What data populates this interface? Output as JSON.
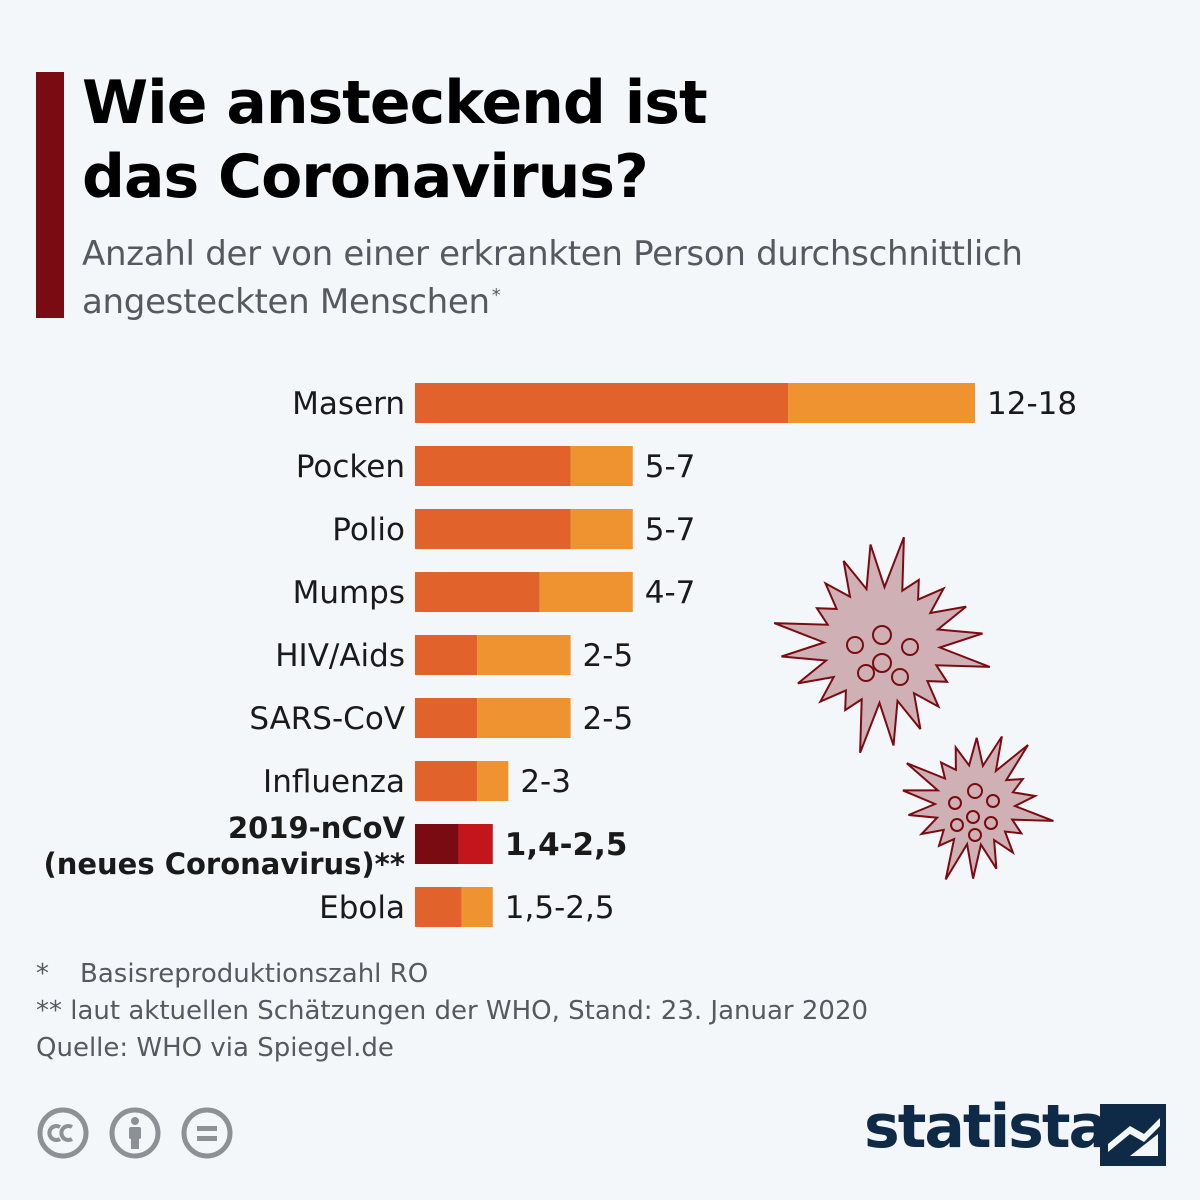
{
  "header": {
    "title_line1": "Wie ansteckend ist",
    "title_line2": "das Coronavirus?",
    "subtitle_line1": "Anzahl der von einer erkrankten Person durchschnittlich",
    "subtitle_line2": "angesteckten Menschen",
    "subtitle_mark": "*"
  },
  "colors": {
    "low": "#e2622c",
    "high": "#ef9330",
    "highlight_low": "#7b0b12",
    "highlight_high": "#c4151c",
    "accent": "#7b0b12",
    "brand": "#0e2a47"
  },
  "chart_data": {
    "type": "bar",
    "orientation": "horizontal",
    "stacked_range": true,
    "categories": [
      "Masern",
      "Pocken",
      "Polio",
      "Mumps",
      "HIV/Aids",
      "SARS-CoV",
      "Influenza",
      "2019-nCoV (neues Coronavirus)**",
      "Ebola"
    ],
    "category_lines": [
      [
        "Masern"
      ],
      [
        "Pocken"
      ],
      [
        "Polio"
      ],
      [
        "Mumps"
      ],
      [
        "HIV/Aids"
      ],
      [
        "SARS-CoV"
      ],
      [
        "Influenza"
      ],
      [
        "2019-nCoV",
        "(neues Coronavirus)**"
      ],
      [
        "Ebola"
      ]
    ],
    "min_values": [
      12,
      5,
      5,
      4,
      2,
      2,
      2,
      1.4,
      1.5
    ],
    "max_values": [
      18,
      7,
      7,
      7,
      5,
      5,
      3,
      2.5,
      2.5
    ],
    "value_labels": [
      "12-18",
      "5-7",
      "5-7",
      "4-7",
      "2-5",
      "2-5",
      "2-3",
      "1,4-2,5",
      "1,5-2,5"
    ],
    "highlight_index": 7,
    "xlim": [
      0,
      18
    ]
  },
  "footnotes": [
    {
      "mark": "*",
      "text": "Basisreproduktionszahl RO"
    },
    {
      "mark": "**",
      "text": "laut aktuellen Schätzungen der WHO, Stand: 23. Januar 2020"
    },
    {
      "mark": "",
      "text": "Quelle: WHO via Spiegel.de"
    }
  ],
  "icons": [
    "cc-icon",
    "attribution-icon",
    "no-derivatives-icon",
    "statista-logo-icon"
  ],
  "brand": {
    "logo_text": "statista"
  }
}
